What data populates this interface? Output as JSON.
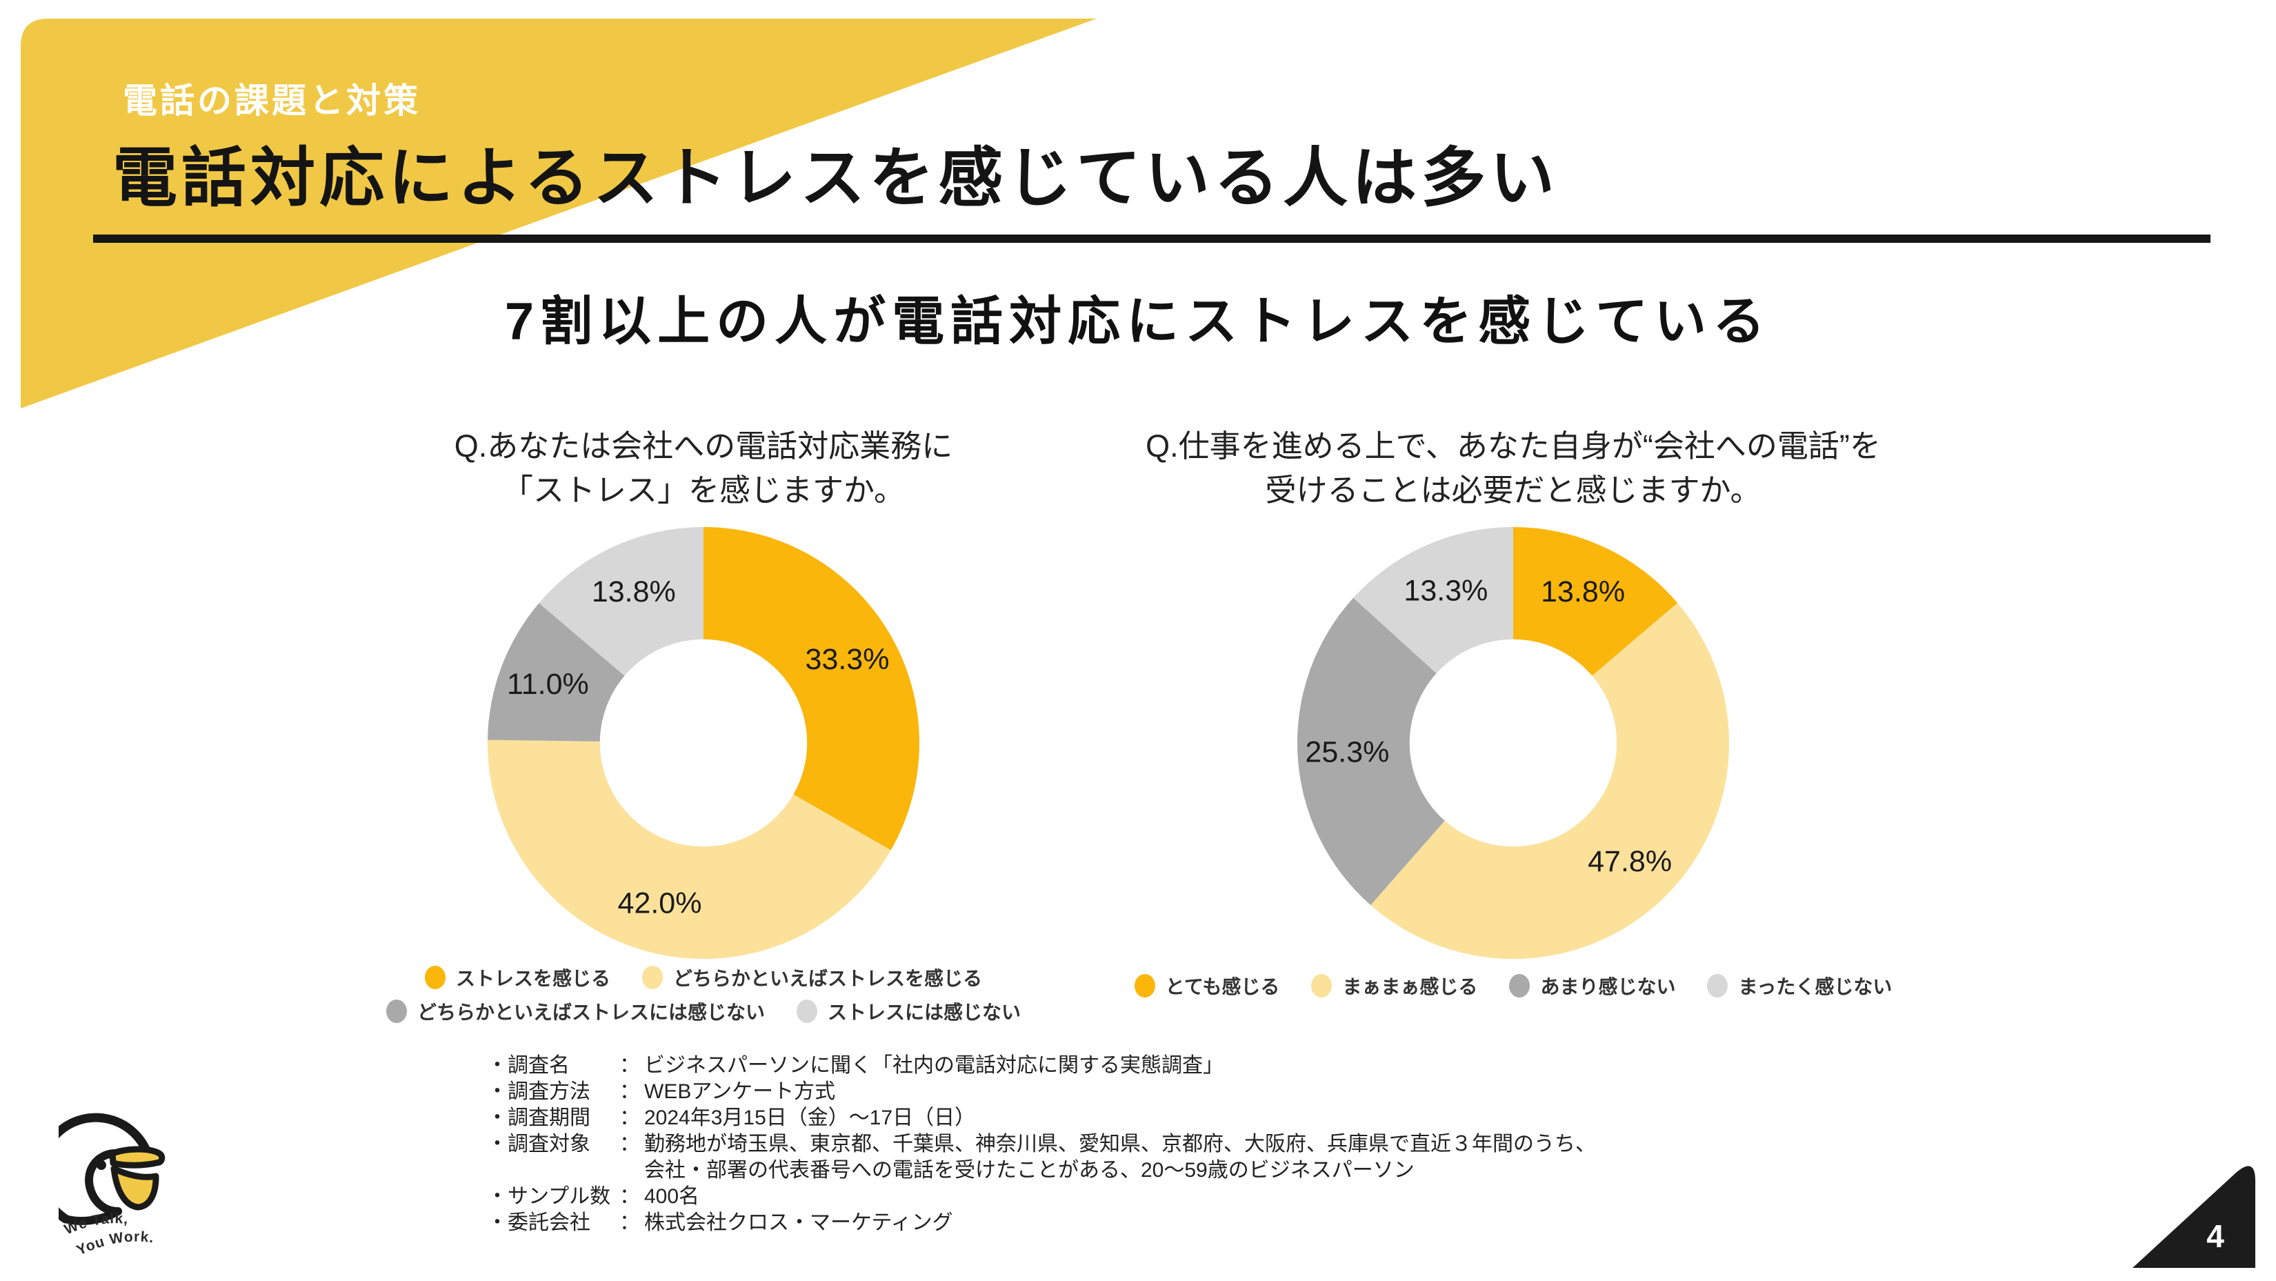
{
  "header": {
    "eyebrow": "電話の課題と対策",
    "title": "電話対応によるストレスを感じている人は多い",
    "subtitle": "7割以上の人が電話対応にストレスを感じている"
  },
  "colors": {
    "accent_yellow": "#F1C845",
    "chart_orange": "#FBB60C",
    "chart_light_yellow": "#FCE19B",
    "chart_gray": "#A9A9A9",
    "chart_light_gray": "#D7D7D7",
    "ink": "#1A1A1A",
    "corner_black": "#1C1C1C"
  },
  "chart_data": [
    {
      "type": "pie",
      "style": "donut",
      "question_lines": [
        "Q.あなたは会社への電話対応業務に",
        "「ストレス」を感じますか。"
      ],
      "categories": [
        "ストレスを感じる",
        "どちらかといえばストレスを感じる",
        "どちらかといえばストレスには感じない",
        "ストレスには感じない"
      ],
      "values": [
        33.3,
        42.0,
        11.0,
        13.8
      ],
      "labels": [
        "33.3%",
        "42.0%",
        "11.0%",
        "13.8%"
      ],
      "colors": [
        "#FBB60C",
        "#FCE19B",
        "#A9A9A9",
        "#D7D7D7"
      ],
      "legend_rows": [
        [
          0,
          1
        ],
        [
          2,
          3
        ]
      ],
      "donut_hole": 0.48,
      "start_angle": 0,
      "direction": "clockwise"
    },
    {
      "type": "pie",
      "style": "donut",
      "question_lines": [
        "Q.仕事を進める上で、あなた自身が“会社への電話”を",
        "受けることは必要だと感じますか。"
      ],
      "categories": [
        "とても感じる",
        "まぁまぁ感じる",
        "あまり感じない",
        "まったく感じない"
      ],
      "values": [
        13.8,
        47.8,
        25.3,
        13.3
      ],
      "labels": [
        "13.8%",
        "47.8%",
        "25.3%",
        "13.3%"
      ],
      "colors": [
        "#FBB60C",
        "#FCE19B",
        "#A9A9A9",
        "#D7D7D7"
      ],
      "legend_rows": [
        [
          0,
          1,
          2,
          3
        ]
      ],
      "donut_hole": 0.48,
      "start_angle": 0,
      "direction": "clockwise"
    }
  ],
  "survey": {
    "rows": [
      {
        "label": "・調査名",
        "colon": "：",
        "value": "ビジネスパーソンに聞く「社内の電話対応に関する実態調査」"
      },
      {
        "label": "・調査方法",
        "colon": "：",
        "value": "WEBアンケート方式"
      },
      {
        "label": "・調査期間",
        "colon": "：",
        "value": "2024年3月15日（金）～17日（日）"
      },
      {
        "label": "・調査対象",
        "colon": "：",
        "value": "勤務地が埼玉県、東京都、千葉県、神奈川県、愛知県、京都府、大阪府、兵庫県で直近３年間のうち、"
      },
      {
        "label": "",
        "colon": "",
        "value": "会社・部署の代表番号への電話を受けたことがある、20～59歳のビジネスパーソン"
      },
      {
        "label": "・サンプル数",
        "colon": "：",
        "value": "400名"
      },
      {
        "label": "・委託会社",
        "colon": "：",
        "value": "株式会社クロス・マーケティング"
      }
    ]
  },
  "logo": {
    "line1": "We Talk,",
    "line2": "You Work."
  },
  "footer": {
    "page_number": "4"
  }
}
